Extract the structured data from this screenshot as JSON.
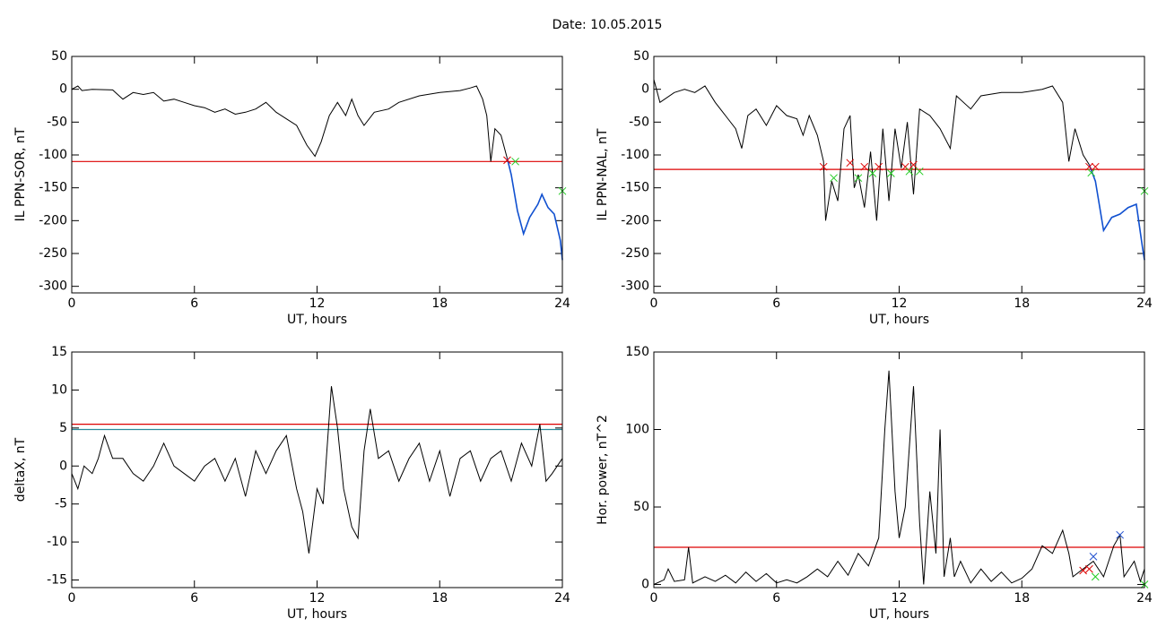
{
  "title": "Date:  10.05.2015",
  "chart_data": [
    {
      "type": "line",
      "xlabel": "UT, hours",
      "ylabel": "IL PPN-SOR, nT",
      "xlim": [
        0,
        24
      ],
      "xticks": [
        0,
        6,
        12,
        18,
        24
      ],
      "ylim": [
        -310,
        50
      ],
      "yticks": [
        -300,
        -250,
        -200,
        -150,
        -100,
        -50,
        0,
        50
      ],
      "hlines": [
        {
          "value": -110,
          "color": "#dd0000"
        }
      ],
      "series": [
        {
          "color": "#000000",
          "x": [
            0,
            0.3,
            0.5,
            1,
            2,
            2.5,
            3,
            3.5,
            4,
            4.5,
            5,
            5.5,
            6,
            6.5,
            7,
            7.5,
            8,
            8.5,
            9,
            9.5,
            10,
            10.5,
            11,
            11.5,
            11.9,
            12.2,
            12.6,
            13,
            13.4,
            13.7,
            14,
            14.3,
            14.8,
            15.5,
            16,
            17,
            18,
            19,
            19.5,
            19.8,
            20.1,
            20.3,
            20.5,
            20.7,
            21,
            21.3
          ],
          "values": [
            0,
            5,
            -2,
            0,
            -1,
            -15,
            -5,
            -8,
            -5,
            -18,
            -15,
            -20,
            -25,
            -28,
            -35,
            -30,
            -38,
            -35,
            -30,
            -20,
            -35,
            -45,
            -55,
            -85,
            -102,
            -80,
            -40,
            -20,
            -40,
            -15,
            -40,
            -55,
            -35,
            -30,
            -20,
            -10,
            -5,
            -2,
            2,
            5,
            -15,
            -40,
            -110,
            -60,
            -70,
            -105
          ]
        },
        {
          "color": "#1050d0",
          "x": [
            21.3,
            21.5,
            21.8,
            22.1,
            22.4,
            22.8,
            23,
            23.3,
            23.6,
            23.9,
            24
          ],
          "values": [
            -105,
            -130,
            -185,
            -220,
            -195,
            -175,
            -160,
            -180,
            -190,
            -230,
            -260
          ]
        }
      ],
      "markers": [
        {
          "color": "#dd0000",
          "x": [
            21.3
          ],
          "values": [
            -108
          ]
        },
        {
          "color": "#22cc22",
          "x": [
            21.7,
            24
          ],
          "values": [
            -110,
            -155
          ]
        }
      ]
    },
    {
      "type": "line",
      "xlabel": "UT, hours",
      "ylabel": "IL PPN-NAL, nT",
      "xlim": [
        0,
        24
      ],
      "xticks": [
        0,
        6,
        12,
        18,
        24
      ],
      "ylim": [
        -310,
        50
      ],
      "yticks": [
        -300,
        -250,
        -200,
        -150,
        -100,
        -50,
        0,
        50
      ],
      "hlines": [
        {
          "value": -122,
          "color": "#dd0000"
        }
      ],
      "series": [
        {
          "color": "#000000",
          "x": [
            0,
            0.3,
            1,
            1.5,
            2,
            2.5,
            3,
            3.5,
            4,
            4.3,
            4.6,
            5,
            5.5,
            6,
            6.5,
            7,
            7.3,
            7.6,
            8,
            8.3,
            8.4,
            8.7,
            9,
            9.3,
            9.6,
            9.8,
            10,
            10.3,
            10.6,
            10.9,
            11.2,
            11.5,
            11.8,
            12.1,
            12.4,
            12.7,
            13,
            13.5,
            14,
            14.5,
            14.8,
            15.5,
            16,
            17,
            18,
            19,
            19.5,
            20,
            20.3,
            20.6,
            21,
            21.3
          ],
          "values": [
            15,
            -20,
            -5,
            0,
            -5,
            5,
            -20,
            -40,
            -60,
            -90,
            -40,
            -30,
            -55,
            -25,
            -40,
            -45,
            -70,
            -40,
            -70,
            -110,
            -200,
            -140,
            -170,
            -60,
            -40,
            -150,
            -130,
            -180,
            -95,
            -200,
            -60,
            -170,
            -60,
            -120,
            -50,
            -160,
            -30,
            -40,
            -60,
            -90,
            -10,
            -30,
            -10,
            -5,
            -5,
            0,
            5,
            -20,
            -110,
            -60,
            -100,
            -115
          ]
        },
        {
          "color": "#1050d0",
          "x": [
            21.3,
            21.6,
            22,
            22.4,
            22.8,
            23.2,
            23.6,
            23.9,
            24
          ],
          "values": [
            -115,
            -140,
            -215,
            -195,
            -190,
            -180,
            -175,
            -240,
            -260
          ]
        }
      ],
      "markers": [
        {
          "color": "#dd0000",
          "x": [
            8.3,
            9.6,
            10.3,
            11,
            12.3,
            12.7,
            21.3,
            21.6
          ],
          "values": [
            -118,
            -112,
            -118,
            -118,
            -118,
            -115,
            -118,
            -118
          ]
        },
        {
          "color": "#22cc22",
          "x": [
            8.8,
            10,
            10.7,
            11.6,
            12.5,
            13,
            21.4,
            24
          ],
          "values": [
            -135,
            -135,
            -128,
            -128,
            -125,
            -125,
            -127,
            -155
          ]
        }
      ]
    },
    {
      "type": "line",
      "xlabel": "UT, hours",
      "ylabel": "deltaX, nT",
      "xlim": [
        0,
        24
      ],
      "xticks": [
        0,
        6,
        12,
        18,
        24
      ],
      "ylim": [
        -16,
        15
      ],
      "yticks": [
        -15,
        -10,
        -5,
        0,
        5,
        10,
        15
      ],
      "hlines": [
        {
          "value": 5.5,
          "color": "#dd0000"
        },
        {
          "value": 4.8,
          "color": "#2a8a9a"
        }
      ],
      "series": [
        {
          "color": "#000000",
          "x": [
            0,
            0.3,
            0.6,
            1,
            1.3,
            1.6,
            2,
            2.5,
            3,
            3.5,
            4,
            4.5,
            5,
            5.5,
            6,
            6.5,
            7,
            7.5,
            8,
            8.5,
            9,
            9.5,
            10,
            10.5,
            11,
            11.3,
            11.6,
            12,
            12.3,
            12.7,
            13,
            13.3,
            13.7,
            14,
            14.3,
            14.6,
            15,
            15.5,
            16,
            16.5,
            17,
            17.5,
            18,
            18.5,
            19,
            19.5,
            20,
            20.5,
            21,
            21.5,
            22,
            22.5,
            22.9,
            23.2,
            23.5,
            24
          ],
          "values": [
            -1,
            -3,
            0,
            -1,
            1,
            4,
            1,
            1,
            -1,
            -2,
            0,
            3,
            0,
            -1,
            -2,
            0,
            1,
            -2,
            1,
            -4,
            2,
            -1,
            2,
            4,
            -3,
            -6,
            -11.5,
            -3,
            -5,
            10.5,
            5,
            -3,
            -8,
            -9.5,
            2,
            7.5,
            1,
            2,
            -2,
            1,
            3,
            -2,
            2,
            -4,
            1,
            2,
            -2,
            1,
            2,
            -2,
            3,
            0,
            5.5,
            -2,
            -1,
            1
          ]
        }
      ],
      "markers": []
    },
    {
      "type": "line",
      "xlabel": "UT, hours",
      "ylabel": "Hor. power, nT^2",
      "xlim": [
        0,
        24
      ],
      "xticks": [
        0,
        6,
        12,
        18,
        24
      ],
      "ylim": [
        -2,
        150
      ],
      "yticks": [
        0,
        50,
        100,
        150
      ],
      "hlines": [
        {
          "value": 24,
          "color": "#dd0000"
        }
      ],
      "series": [
        {
          "color": "#000000",
          "x": [
            0,
            0.5,
            0.7,
            1,
            1.5,
            1.7,
            1.9,
            2.5,
            3,
            3.5,
            4,
            4.5,
            5,
            5.5,
            6,
            6.5,
            7,
            7.5,
            8,
            8.5,
            9,
            9.5,
            10,
            10.5,
            11,
            11.3,
            11.5,
            11.8,
            12,
            12.3,
            12.7,
            13,
            13.2,
            13.5,
            13.8,
            14,
            14.2,
            14.5,
            14.7,
            15,
            15.5,
            16,
            16.5,
            17,
            17.5,
            18,
            18.5,
            19,
            19.5,
            20,
            20.3,
            20.5,
            21,
            21.5,
            22,
            22.5,
            22.8,
            23,
            23.5,
            23.8,
            24
          ],
          "values": [
            0,
            3,
            10,
            2,
            3,
            24,
            1,
            5,
            2,
            6,
            1,
            8,
            2,
            7,
            1,
            3,
            1,
            5,
            10,
            5,
            15,
            6,
            20,
            12,
            30,
            100,
            138,
            60,
            30,
            50,
            128,
            40,
            0,
            60,
            20,
            100,
            5,
            30,
            5,
            15,
            1,
            10,
            2,
            8,
            1,
            4,
            10,
            25,
            20,
            35,
            20,
            5,
            10,
            15,
            5,
            25,
            32,
            5,
            15,
            2,
            10
          ]
        }
      ],
      "markers": [
        {
          "color": "#dd0000",
          "x": [
            21,
            21.3
          ],
          "values": [
            9,
            10
          ]
        },
        {
          "color": "#2050d0",
          "x": [
            21.5,
            22.8
          ],
          "values": [
            18,
            32
          ]
        },
        {
          "color": "#22cc22",
          "x": [
            21.6,
            24
          ],
          "values": [
            5,
            0
          ]
        }
      ]
    }
  ]
}
